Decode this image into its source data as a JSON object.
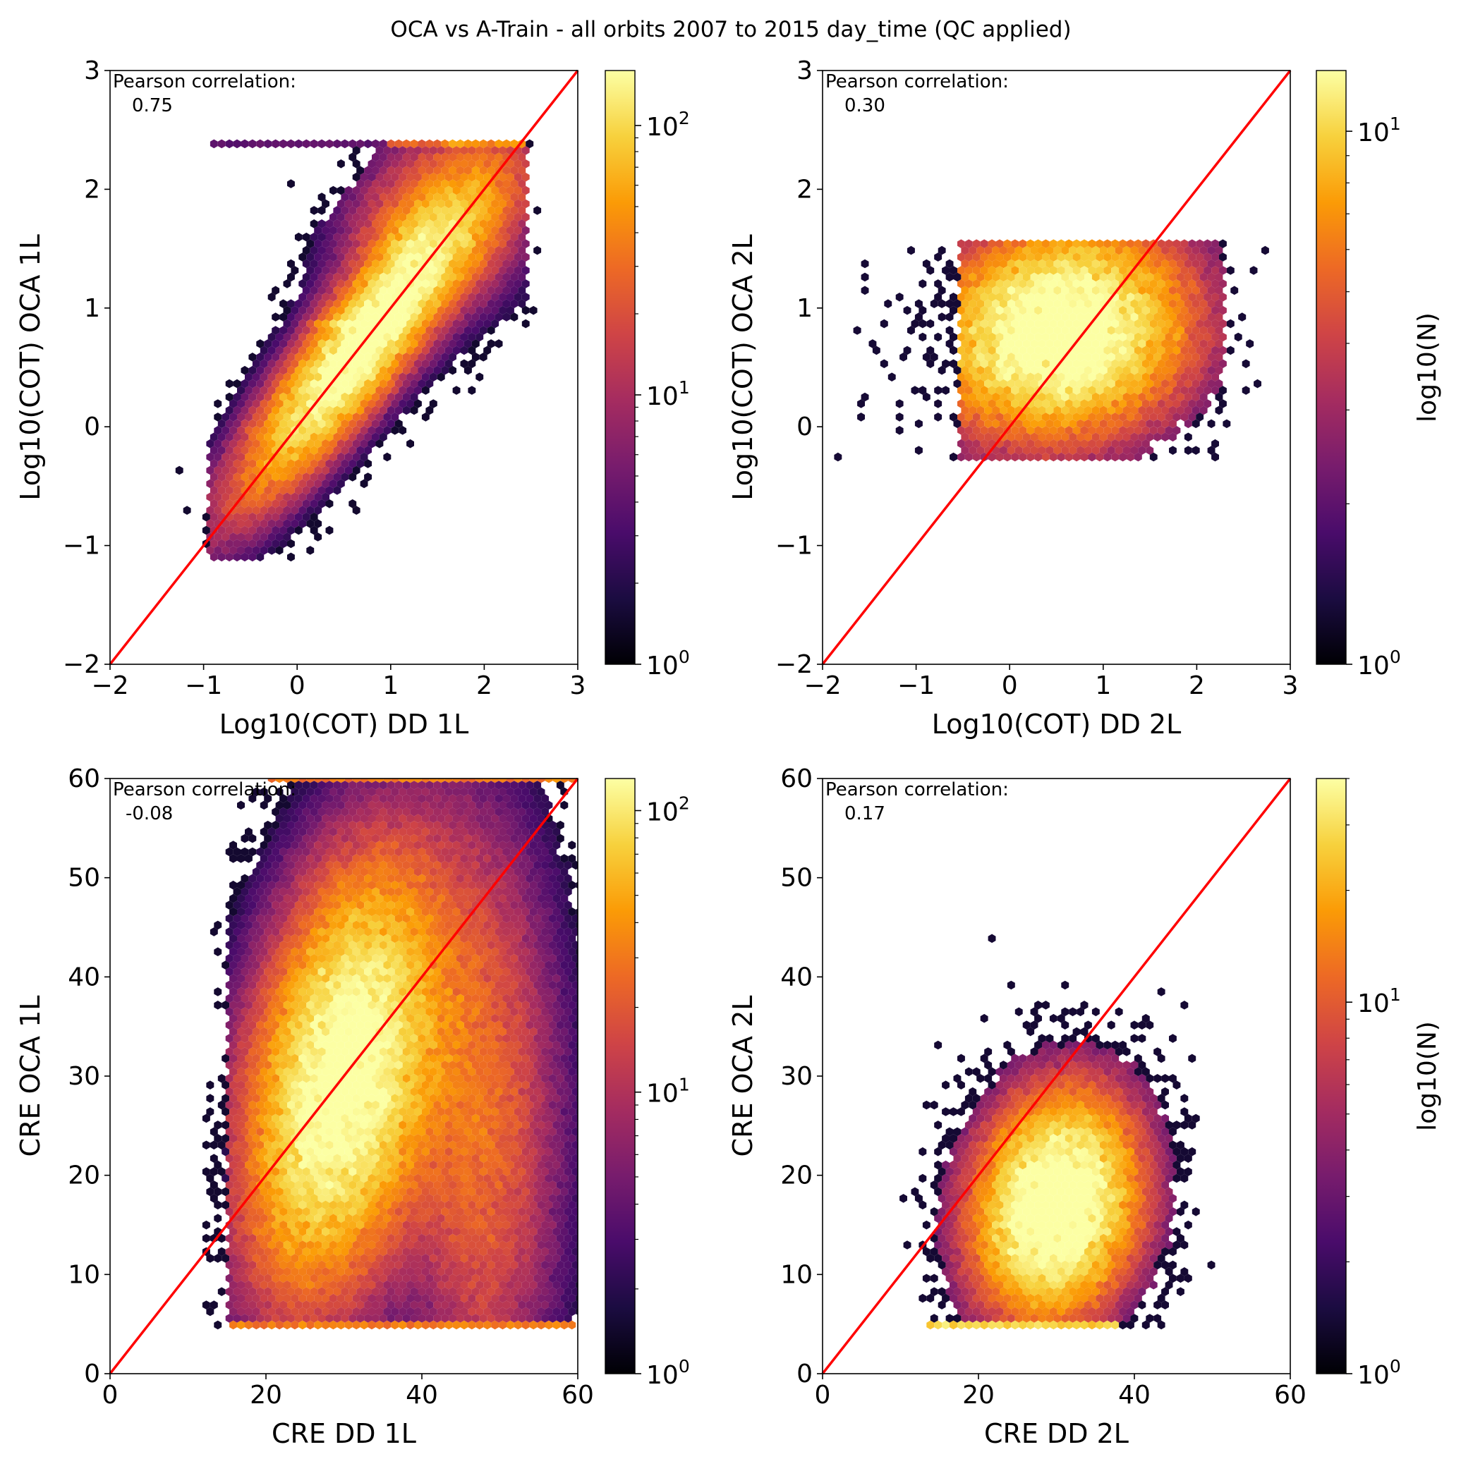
{
  "figure": {
    "title": "OCA vs A-Train - all orbits 2007 to 2015 day_time (QC applied)",
    "colormap": [
      "#000004",
      "#1b0c41",
      "#4a0c6b",
      "#781c6d",
      "#a52c60",
      "#cf4446",
      "#ed6925",
      "#fb9b06",
      "#f7d13d",
      "#fcffa4"
    ],
    "identity_line_color": "#ff0000"
  },
  "chart_data": [
    {
      "type": "hexbin",
      "xlabel": "Log10(COT) DD 1L",
      "ylabel": "Log10(COT) OCA 1L",
      "xlim": [
        -2,
        3
      ],
      "ylim": [
        -2,
        3
      ],
      "xticks": [
        -2,
        -1,
        0,
        1,
        2,
        3
      ],
      "yticks": [
        -2,
        -1,
        0,
        1,
        2,
        3
      ],
      "xtick_labels": [
        "−2",
        "−1",
        "0",
        "1",
        "2",
        "3"
      ],
      "ytick_labels": [
        "−2",
        "−1",
        "0",
        "1",
        "2",
        "3"
      ],
      "annotation_title": "Pearson correlation:",
      "annotation_value": "0.75",
      "identity_line": [
        [
          -2,
          -2
        ],
        [
          3,
          3
        ]
      ],
      "colorbar": {
        "label": "",
        "scale": "log",
        "range": [
          1,
          160
        ],
        "ticks": [
          1,
          10,
          100
        ],
        "tick_labels": [
          {
            "base": "10",
            "exp": "0"
          },
          {
            "base": "10",
            "exp": "1"
          },
          {
            "base": "10",
            "exp": "2"
          }
        ]
      }
    },
    {
      "type": "hexbin",
      "xlabel": "Log10(COT) DD 2L",
      "ylabel": "Log10(COT) OCA 2L",
      "xlim": [
        -2,
        3
      ],
      "ylim": [
        -2,
        3
      ],
      "xticks": [
        -2,
        -1,
        0,
        1,
        2,
        3
      ],
      "yticks": [
        -2,
        -1,
        0,
        1,
        2,
        3
      ],
      "xtick_labels": [
        "−2",
        "−1",
        "0",
        "1",
        "2",
        "3"
      ],
      "ytick_labels": [
        "−2",
        "−1",
        "0",
        "1",
        "2",
        "3"
      ],
      "annotation_title": "Pearson correlation:",
      "annotation_value": "0.30",
      "identity_line": [
        [
          -2,
          -2
        ],
        [
          3,
          3
        ]
      ],
      "colorbar": {
        "label": "log10(N)",
        "scale": "log",
        "range": [
          1,
          13
        ],
        "ticks": [
          1,
          10
        ],
        "tick_labels": [
          {
            "base": "10",
            "exp": "0"
          },
          {
            "base": "10",
            "exp": "1"
          }
        ]
      }
    },
    {
      "type": "hexbin",
      "xlabel": "CRE DD 1L",
      "ylabel": "CRE OCA 1L",
      "xlim": [
        0,
        60
      ],
      "ylim": [
        0,
        60
      ],
      "xticks": [
        0,
        20,
        40,
        60
      ],
      "yticks": [
        0,
        10,
        20,
        30,
        40,
        50,
        60
      ],
      "xtick_labels": [
        "0",
        "20",
        "40",
        "60"
      ],
      "ytick_labels": [
        "0",
        "10",
        "20",
        "30",
        "40",
        "50",
        "60"
      ],
      "annotation_title": "Pearson correlation:",
      "annotation_value": "-0.08",
      "identity_line": [
        [
          0,
          0
        ],
        [
          60,
          60
        ]
      ],
      "colorbar": {
        "label": "",
        "scale": "log",
        "range": [
          1,
          130
        ],
        "ticks": [
          1,
          10,
          100
        ],
        "tick_labels": [
          {
            "base": "10",
            "exp": "0"
          },
          {
            "base": "10",
            "exp": "1"
          },
          {
            "base": "10",
            "exp": "2"
          }
        ]
      }
    },
    {
      "type": "hexbin",
      "xlabel": "CRE DD 2L",
      "ylabel": "CRE OCA 2L",
      "xlim": [
        0,
        60
      ],
      "ylim": [
        0,
        60
      ],
      "xticks": [
        0,
        20,
        40,
        60
      ],
      "yticks": [
        0,
        10,
        20,
        30,
        40,
        50,
        60
      ],
      "xtick_labels": [
        "0",
        "20",
        "40",
        "60"
      ],
      "ytick_labels": [
        "0",
        "10",
        "20",
        "30",
        "40",
        "50",
        "60"
      ],
      "annotation_title": "Pearson correlation:",
      "annotation_value": "0.17",
      "identity_line": [
        [
          0,
          0
        ],
        [
          60,
          60
        ]
      ],
      "colorbar": {
        "label": "log10(N)",
        "scale": "log",
        "range": [
          1,
          40
        ],
        "ticks": [
          1,
          10
        ],
        "tick_labels": [
          {
            "base": "10",
            "exp": "0"
          },
          {
            "base": "10",
            "exp": "1"
          }
        ]
      }
    }
  ]
}
